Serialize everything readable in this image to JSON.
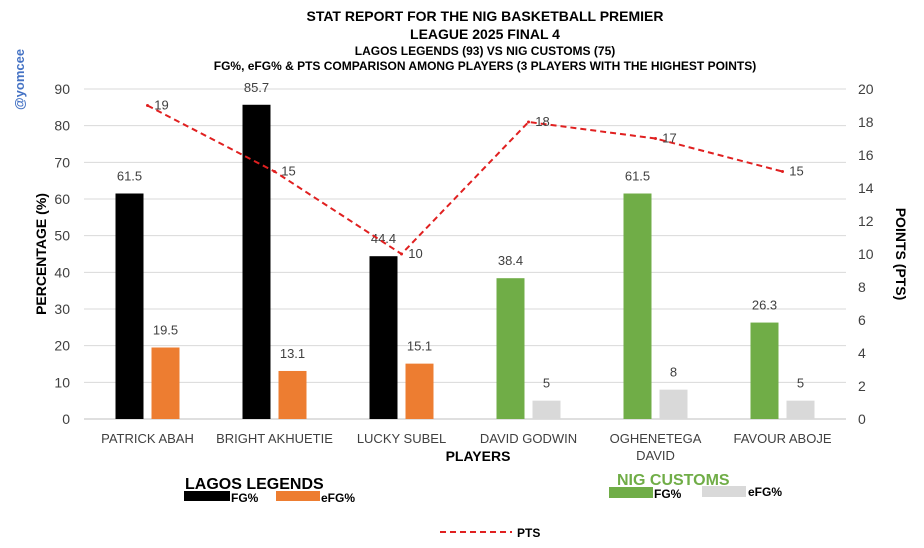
{
  "watermark": "@yomcee",
  "colors": {
    "lagos_fg": "#000000",
    "lagos_efg": "#ed7d31",
    "nig_fg": "#70ad47",
    "nig_efg": "#d9d9d9",
    "pts": "#e02020",
    "nig_title": "#70ad47",
    "grid": "#d9d9d9"
  },
  "legend": {
    "lagos_title": "LAGOS LEGENDS",
    "nig_title": "NIG CUSTOMS",
    "fg": "FG%",
    "efg": "eFG%",
    "pts": "PTS"
  },
  "chart_data": {
    "type": "bar",
    "title_lines": [
      "STAT REPORT FOR THE NIG BASKETBALL PREMIER",
      "LEAGUE 2025 FINAL 4",
      "LAGOS LEGENDS (93) VS NIG CUSTOMS (75)",
      "FG%, eFG% & PTS COMPARISON AMONG PLAYERS (3 PLAYERS WITH THE HIGHEST POINTS)"
    ],
    "xlabel": "PLAYERS",
    "ylabel": "PERCENTAGE (%)",
    "y2label": "POINTS (PTS)",
    "ylim": [
      0,
      90
    ],
    "yticks": [
      0,
      10,
      20,
      30,
      40,
      50,
      60,
      70,
      80,
      90
    ],
    "y2lim": [
      0,
      20
    ],
    "y2ticks": [
      0,
      2,
      4,
      6,
      8,
      10,
      12,
      14,
      16,
      18,
      20
    ],
    "categories": [
      [
        "PATRICK ABAH"
      ],
      [
        "BRIGHT AKHUETIE"
      ],
      [
        "LUCKY SUBEL"
      ],
      [
        "DAVID GODWIN"
      ],
      [
        "OGHENETEGA",
        "DAVID"
      ],
      [
        "FAVOUR ABOJE"
      ]
    ],
    "teams": [
      "LAGOS LEGENDS",
      "LAGOS LEGENDS",
      "LAGOS LEGENDS",
      "NIG CUSTOMS",
      "NIG CUSTOMS",
      "NIG CUSTOMS"
    ],
    "series": [
      {
        "name": "FG%",
        "type": "bar",
        "values": [
          61.5,
          85.7,
          44.4,
          38.4,
          61.5,
          26.3
        ]
      },
      {
        "name": "eFG%",
        "type": "bar",
        "values": [
          19.5,
          13.1,
          15.1,
          5,
          8,
          5
        ]
      },
      {
        "name": "PTS",
        "type": "line",
        "axis": "secondary",
        "values": [
          19,
          15,
          10,
          18,
          17,
          15
        ]
      }
    ]
  }
}
